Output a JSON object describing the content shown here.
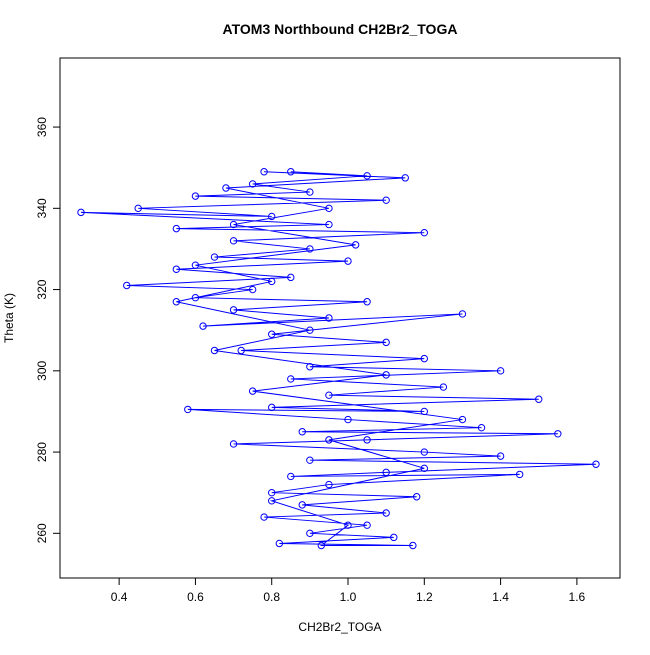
{
  "chart_data": {
    "type": "line",
    "title": "ATOM3 Northbound CH2Br2_TOGA",
    "x_label": "CH2Br2_TOGA",
    "y_label": "Theta (K)",
    "color": "#0000ff",
    "markers": "open-circle",
    "x": [
      0.85,
      1.05,
      0.75,
      0.9,
      0.6,
      1.1,
      0.45,
      0.8,
      0.3,
      0.95,
      0.55,
      1.2,
      0.7,
      0.9,
      0.65,
      1.0,
      0.55,
      0.85,
      0.42,
      0.75,
      0.6,
      1.05,
      0.7,
      0.95,
      0.62,
      1.3,
      0.8,
      1.1,
      0.72,
      1.2,
      0.9,
      1.4,
      0.85,
      1.25,
      0.95,
      1.5,
      0.8,
      1.2,
      0.58,
      1.0,
      1.35,
      0.88,
      1.55,
      1.05,
      0.7,
      1.2,
      1.4,
      0.9,
      1.65,
      1.1,
      0.85,
      1.45,
      0.95,
      0.8,
      1.18,
      0.88,
      1.1,
      0.78,
      1.05,
      0.9,
      1.12,
      0.82,
      1.17,
      0.93,
      1.0,
      0.8,
      1.2,
      0.95,
      1.3,
      0.75,
      1.1,
      0.65,
      0.9,
      0.55,
      0.8,
      0.6,
      1.02,
      0.7,
      0.95,
      0.68,
      1.15,
      0.78
    ],
    "values": [
      349,
      348,
      346,
      344,
      343,
      342,
      340,
      338,
      339,
      336,
      335,
      334,
      332,
      330,
      328,
      327,
      325,
      323,
      321,
      320,
      318,
      317,
      315,
      313,
      311,
      314,
      309,
      307,
      305,
      303,
      301,
      300,
      298,
      296,
      294,
      293,
      291,
      290,
      290.5,
      288,
      286,
      285,
      284.5,
      283,
      282,
      280,
      279,
      278,
      277,
      275,
      274,
      274.5,
      272,
      270,
      269,
      267,
      265,
      264,
      262,
      260,
      259,
      257.5,
      257,
      257,
      262,
      268,
      276,
      283,
      288,
      295,
      299,
      305,
      310,
      317,
      322,
      326,
      331,
      336,
      340,
      345,
      347.5,
      349
    ],
    "xlim": [
      0.245,
      1.713
    ],
    "ylim": [
      249,
      377
    ],
    "xticks": [
      0.4,
      0.6,
      0.8,
      {
        "value": 1,
        "label": "1.0"
      },
      1.2,
      1.4,
      1.6
    ],
    "yticks": [
      260,
      280,
      300,
      320,
      340,
      360
    ]
  }
}
